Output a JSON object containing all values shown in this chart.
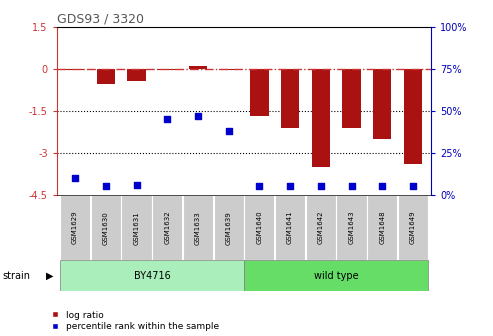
{
  "title": "GDS93 / 3320",
  "samples": [
    "GSM1629",
    "GSM1630",
    "GSM1631",
    "GSM1632",
    "GSM1633",
    "GSM1639",
    "GSM1640",
    "GSM1641",
    "GSM1642",
    "GSM1643",
    "GSM1648",
    "GSM1649"
  ],
  "log_ratio": [
    -0.05,
    -0.55,
    -0.45,
    -0.05,
    0.1,
    -0.05,
    -1.7,
    -2.1,
    -3.5,
    -2.1,
    -2.5,
    -3.4
  ],
  "percentile_rank": [
    10,
    5,
    6,
    45,
    47,
    38,
    5,
    5,
    5,
    5,
    5,
    5
  ],
  "left_ylim": [
    -4.5,
    1.5
  ],
  "right_ylim": [
    0,
    100
  ],
  "left_yticks": [
    -4.5,
    -3,
    -1.5,
    0,
    1.5
  ],
  "right_yticks": [
    0,
    25,
    50,
    75,
    100
  ],
  "left_ytick_labels": [
    "-4.5",
    "-3",
    "-1.5",
    "0",
    "1.5"
  ],
  "right_ytick_labels": [
    "0%",
    "25%",
    "50%",
    "75%",
    "100%"
  ],
  "bar_color": "#AA1111",
  "dot_color": "#0000CC",
  "dashed_line_color": "#CC3333",
  "dotted_line_color": "#000000",
  "strain_color_by4716": "#AAEEBB",
  "strain_color_wt": "#66DD66",
  "title_color": "#555555",
  "left_axis_color": "#CC3333",
  "right_axis_color": "#0000BB",
  "bg_color": "#FFFFFF",
  "sample_bg_color": "#CCCCCC",
  "legend_log_ratio_label": "log ratio",
  "legend_percentile_label": "percentile rank within the sample",
  "strain_data": [
    {
      "label": "BY4716",
      "start": 0,
      "end": 5
    },
    {
      "label": "wild type",
      "start": 6,
      "end": 11
    }
  ]
}
